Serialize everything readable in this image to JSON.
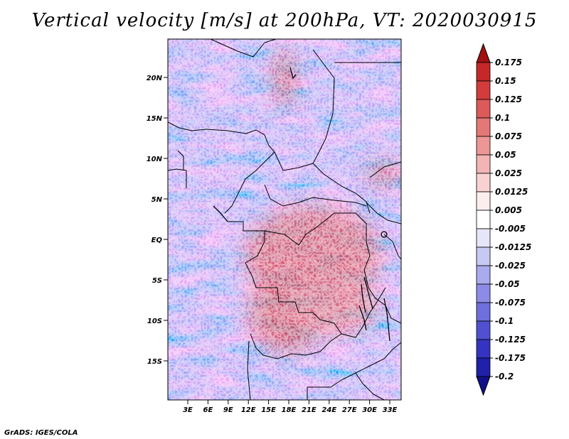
{
  "title": "Vertical velocity [m/s] at 200hPa, VT: 2020030915",
  "credit": "GrADS: IGES/COLA",
  "map": {
    "lat_labels": [
      "20N",
      "15N",
      "10N",
      "5N",
      "EQ",
      "5S",
      "10S",
      "15S"
    ],
    "lon_labels": [
      "3E",
      "6E",
      "9E",
      "12E",
      "15E",
      "18E",
      "21E",
      "24E",
      "27E",
      "30E",
      "33E"
    ]
  },
  "colorbar": {
    "labels": [
      "0.175",
      "0.15",
      "0.125",
      "0.1",
      "0.075",
      "0.05",
      "0.025",
      "0.0125",
      "0.005",
      "-0.005",
      "-0.0125",
      "-0.025",
      "-0.05",
      "-0.075",
      "-0.1",
      "-0.125",
      "-0.175",
      "-0.2"
    ],
    "colors": [
      "#b01818",
      "#c42828",
      "#d23c3c",
      "#dc5a5a",
      "#e47878",
      "#ec9696",
      "#f2b4b4",
      "#f8d2d2",
      "#fdeeee",
      "#ffffff",
      "#e6e6fa",
      "#c8c8f4",
      "#aaaaee",
      "#8c8ce6",
      "#6e6edc",
      "#5050d0",
      "#3434c0",
      "#2020a8",
      "#14149a"
    ],
    "top_color": "#a01010",
    "bottom_color": "#10108a"
  }
}
